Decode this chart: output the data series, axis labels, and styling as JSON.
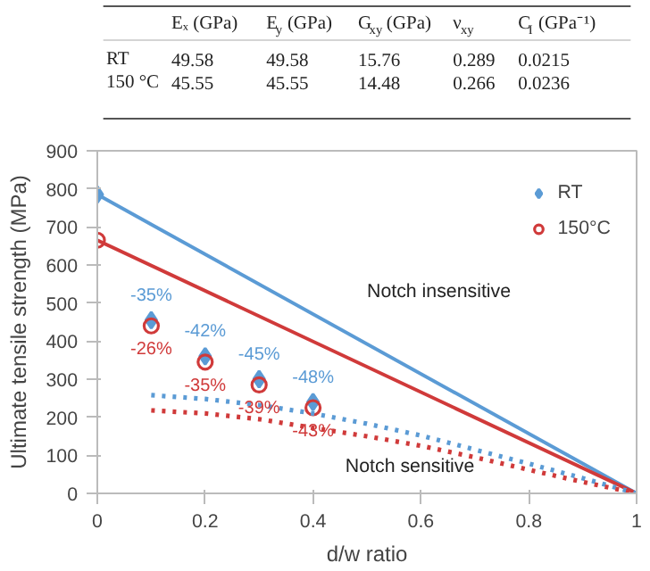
{
  "chart_data": {
    "type": "line",
    "xlabel": "d/w ratio",
    "ylabel": "Ultimate tensile strength (MPa)",
    "xlim": [
      0,
      1
    ],
    "xticks": [
      0,
      0.2,
      0.4,
      0.6,
      0.8,
      1
    ],
    "ylim": [
      0,
      900
    ],
    "yticks": [
      0,
      100,
      200,
      300,
      400,
      500,
      600,
      700,
      800,
      900
    ],
    "grid": false,
    "legend": "top right",
    "series": [
      {
        "name": "RT",
        "type": "scatter",
        "marker": "diamond",
        "color": "#5b9bd5",
        "x": [
          0,
          0.1,
          0.2,
          0.3,
          0.4
        ],
        "values": [
          785,
          455,
          360,
          300,
          240
        ]
      },
      {
        "name": "150°C",
        "type": "scatter",
        "marker": "circle",
        "color": "#d03a3a",
        "x": [
          0,
          0.1,
          0.2,
          0.3,
          0.4
        ],
        "values": [
          665,
          440,
          345,
          285,
          225
        ]
      },
      {
        "line_style": "solid",
        "color": "#5b9bd5",
        "x": [
          0,
          1
        ],
        "values": [
          785,
          0
        ]
      },
      {
        "line_style": "solid",
        "color": "#d03a3a",
        "x": [
          0,
          1
        ],
        "values": [
          665,
          0
        ]
      },
      {
        "line_style": "dotted",
        "color": "#5b9bd5",
        "x": [
          0.1,
          0.2,
          0.3,
          0.4,
          0.5,
          0.6,
          0.7,
          0.8,
          0.9,
          1
        ],
        "values": [
          258,
          248,
          232,
          210,
          183,
          152,
          115,
          78,
          40,
          0
        ]
      },
      {
        "line_style": "dotted",
        "color": "#d03a3a",
        "x": [
          0.1,
          0.2,
          0.3,
          0.4,
          0.5,
          0.6,
          0.7,
          0.8,
          0.9,
          1
        ],
        "values": [
          218,
          210,
          195,
          172,
          150,
          125,
          95,
          62,
          30,
          0
        ]
      }
    ],
    "annotations": [
      {
        "text": "-35%",
        "x": 0.1,
        "y": 455
      },
      {
        "text": "-42%",
        "x": 0.2,
        "y": 360
      },
      {
        "text": "-45%",
        "x": 0.3,
        "y": 300
      },
      {
        "text": "-48%",
        "x": 0.4,
        "y": 240
      },
      {
        "text": "-26%",
        "x": 0.1,
        "y": 440
      },
      {
        "text": "-35%",
        "x": 0.2,
        "y": 345
      },
      {
        "text": "-39%",
        "x": 0.3,
        "y": 285
      },
      {
        "text": "-43%",
        "x": 0.4,
        "y": 225
      },
      "Notch insensitive",
      "Notch sensitive",
      "Eₓ (GPa)",
      "E$_{y}$ (GPa)",
      "G$_{xy}$ (GPa)",
      "ν$_{xy}$",
      "C$_{I}$ (GPa⁻¹)",
      "RT",
      "49.58",
      "49.58",
      "15.76",
      "0.289",
      "0.0215",
      "150 °C",
      "45.55",
      "45.55",
      "14.48",
      "0.266",
      "0.0236"
    ]
  }
}
